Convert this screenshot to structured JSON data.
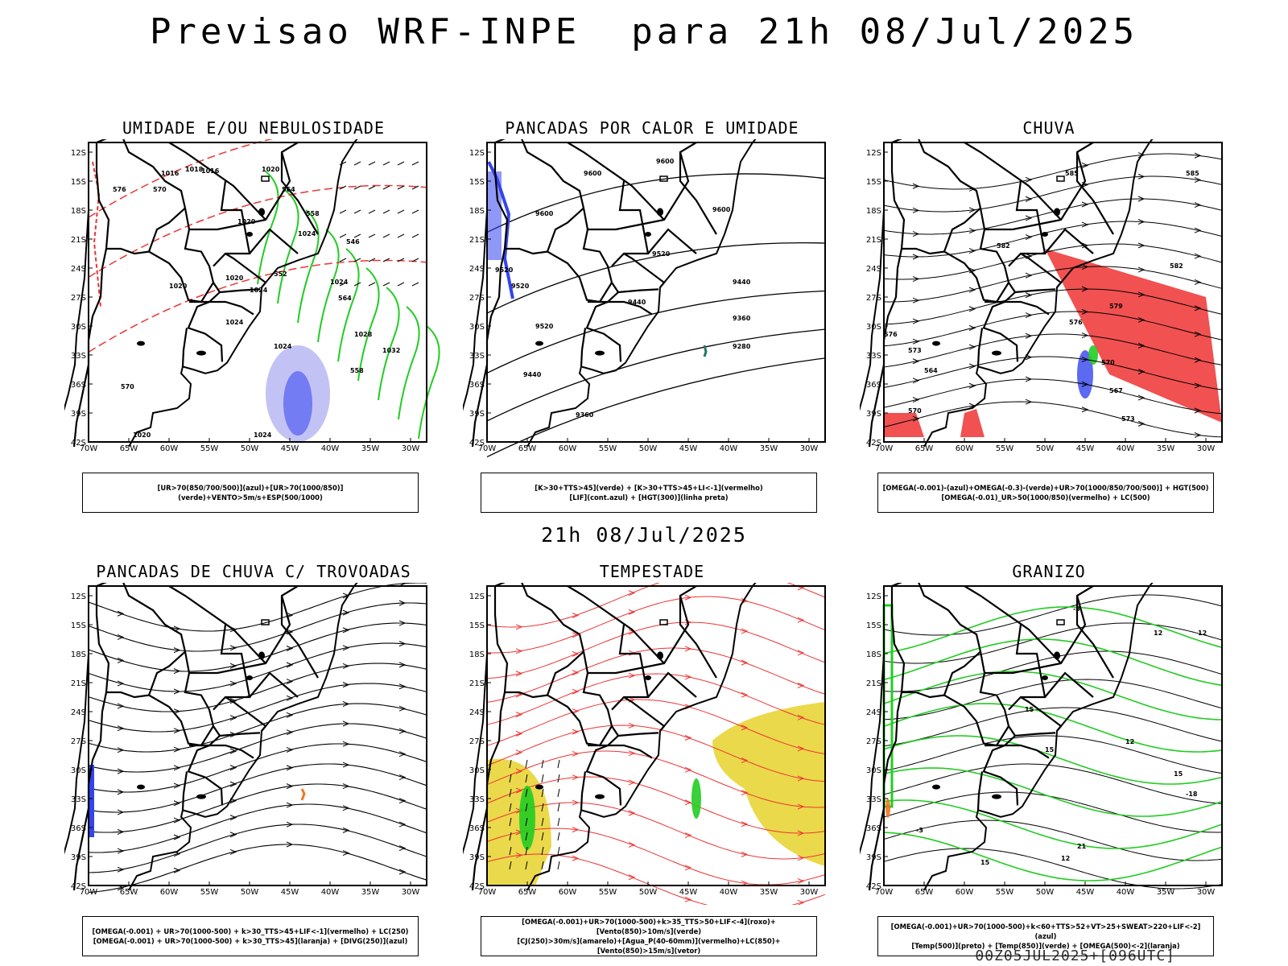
{
  "title": "Previsao WRF-INPE  para 21h 08/Jul/2025",
  "mid_title": "21h 08/Jul/2025",
  "footer": "00Z05JUL2025+[096UTC]",
  "axes": {
    "lat_labels": [
      "12S",
      "15S",
      "18S",
      "21S",
      "24S",
      "27S",
      "30S",
      "33S",
      "36S",
      "39S",
      "42S"
    ],
    "lon_labels": [
      "70W",
      "65W",
      "60W",
      "55W",
      "50W",
      "45W",
      "40W",
      "35W",
      "30W"
    ]
  },
  "colors": {
    "blue": "#3344ee",
    "light_blue": "#9999ee",
    "green": "#22cc22",
    "red": "#ee3333",
    "yellow": "#e6d22a",
    "orange": "#ee7722",
    "teal": "#227766",
    "black": "#000000"
  },
  "panels": [
    {
      "title": "UMIDADE E/OU NEBULOSIDADE",
      "legend": [
        "[UR>70(850/700/500)](azul)+[UR>70(1000/850)](verde)+VENTO>5m/s+ESP(500/1000)"
      ],
      "contour_labels": [
        "1016",
        "1018",
        "1016",
        "1020",
        "1020",
        "1024",
        "1020",
        "1024",
        "1020",
        "1024",
        "1028",
        "1024",
        "1032",
        "1024",
        "1020",
        "1024",
        "576",
        "570",
        "564",
        "558",
        "552",
        "546",
        "564",
        "558",
        "570"
      ]
    },
    {
      "title": "PANCADAS POR CALOR E UMIDADE",
      "legend": [
        "[K>30+TTS>45](verde) + [K>30+TTS>45+LI<-1](vermelho)",
        "[LIF](cont.azul) + [HGT(300)](linha preta)"
      ],
      "contour_labels": [
        "9600",
        "9600",
        "9600",
        "9600",
        "9520",
        "9520",
        "9520",
        "9440",
        "9520",
        "9440",
        "9360",
        "9280",
        "9440",
        "9360"
      ]
    },
    {
      "title": "CHUVA",
      "legend": [
        "[OMEGA(-0.001)-(azul)+OMEGA(-0.3)-(verde)+UR>70(1000/850/700/500)] + HGT(500)",
        "[OMEGA(-0.01)_UR>50(1000/850)(vermelho) + LC(500)"
      ],
      "contour_labels": [
        "585",
        "585",
        "582",
        "582",
        "579",
        "576",
        "576",
        "573",
        "570",
        "567",
        "564",
        "570",
        "573"
      ]
    },
    {
      "title": "PANCADAS DE CHUVA C/ TROVOADAS",
      "legend": [
        "[OMEGA(-0.001) + UR>70(1000-500) + k>30_TTS>45+LIF<-1](vermelho) + LC(250)",
        "[OMEGA(-0.001) + UR>70(1000-500) + k>30_TTS>45](laranja) + [DIVG(250)](azul)"
      ]
    },
    {
      "title": "TEMPESTADE",
      "legend": [
        "[OMEGA(-0.001)+UR>70(1000-500)+k>35_TTS>50+LIF<-4](roxo)+[Vento(850)>10m/s](verde)",
        "[CJ(250)>30m/s](amarelo)+[Agua_P(40-60mm)](vermelho)+LC(850)+[Vento(850)>15m/s](vetor)"
      ]
    },
    {
      "title": "GRANIZO",
      "legend": [
        "[OMEGA(-0.001)+UR>70(1000-500)+k<60+TTS>52+VT>25+SWEAT>220+LIF<-2](azul)",
        "[Temp(500)](preto) + [Temp(850)](verde) + [OMEGA(500)<-2](laranja)"
      ],
      "contour_labels": [
        "-3",
        "12",
        "12",
        "15",
        "12",
        "15",
        "-3",
        "15",
        "12",
        "-18",
        "21",
        "15"
      ]
    }
  ]
}
